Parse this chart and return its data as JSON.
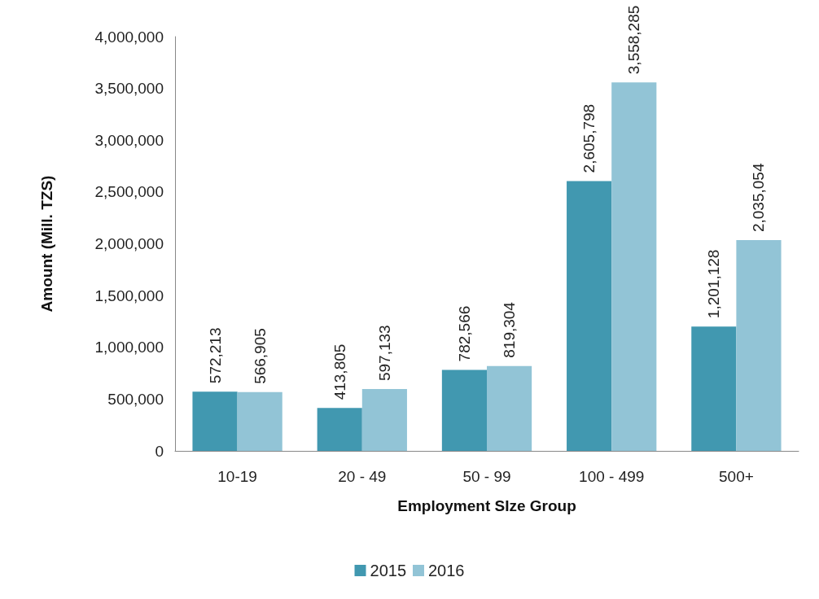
{
  "chart_data": {
    "type": "bar",
    "xlabel": "Employment SIze Group",
    "ylabel": "Amount (Mill. TZS)",
    "categories": [
      "10-19",
      "20 - 49",
      "50 - 99",
      "100 - 499",
      "500+"
    ],
    "series": [
      {
        "name": "2015",
        "color": "#4198b0",
        "values": [
          572213,
          413805,
          782566,
          2605798,
          1201128
        ],
        "value_labels": [
          "572,213",
          "413,805",
          "782,566",
          "2,605,798",
          "1,201,128"
        ]
      },
      {
        "name": "2016",
        "color": "#92c4d6",
        "values": [
          566905,
          597133,
          819304,
          3558285,
          2035054
        ],
        "value_labels": [
          "566,905",
          "597,133",
          "819,304",
          "3,558,285",
          "2,035,054"
        ]
      }
    ],
    "ylim": [
      0,
      4000000
    ],
    "yticks": [
      0,
      {
        "value": 500000,
        "label": "500,000"
      },
      {
        "value": 1000000,
        "label": "1,000,000"
      },
      {
        "value": 1500000,
        "label": "1,500,000"
      },
      {
        "value": 2000000,
        "label": "2,000,000"
      },
      {
        "value": 2500000,
        "label": "2,500,000"
      },
      {
        "value": 3000000,
        "label": "3,000,000"
      },
      {
        "value": 3500000,
        "label": "3,500,000"
      },
      {
        "value": 4000000,
        "label": "4,000,000"
      }
    ],
    "grid": false,
    "legend": "bottom"
  }
}
